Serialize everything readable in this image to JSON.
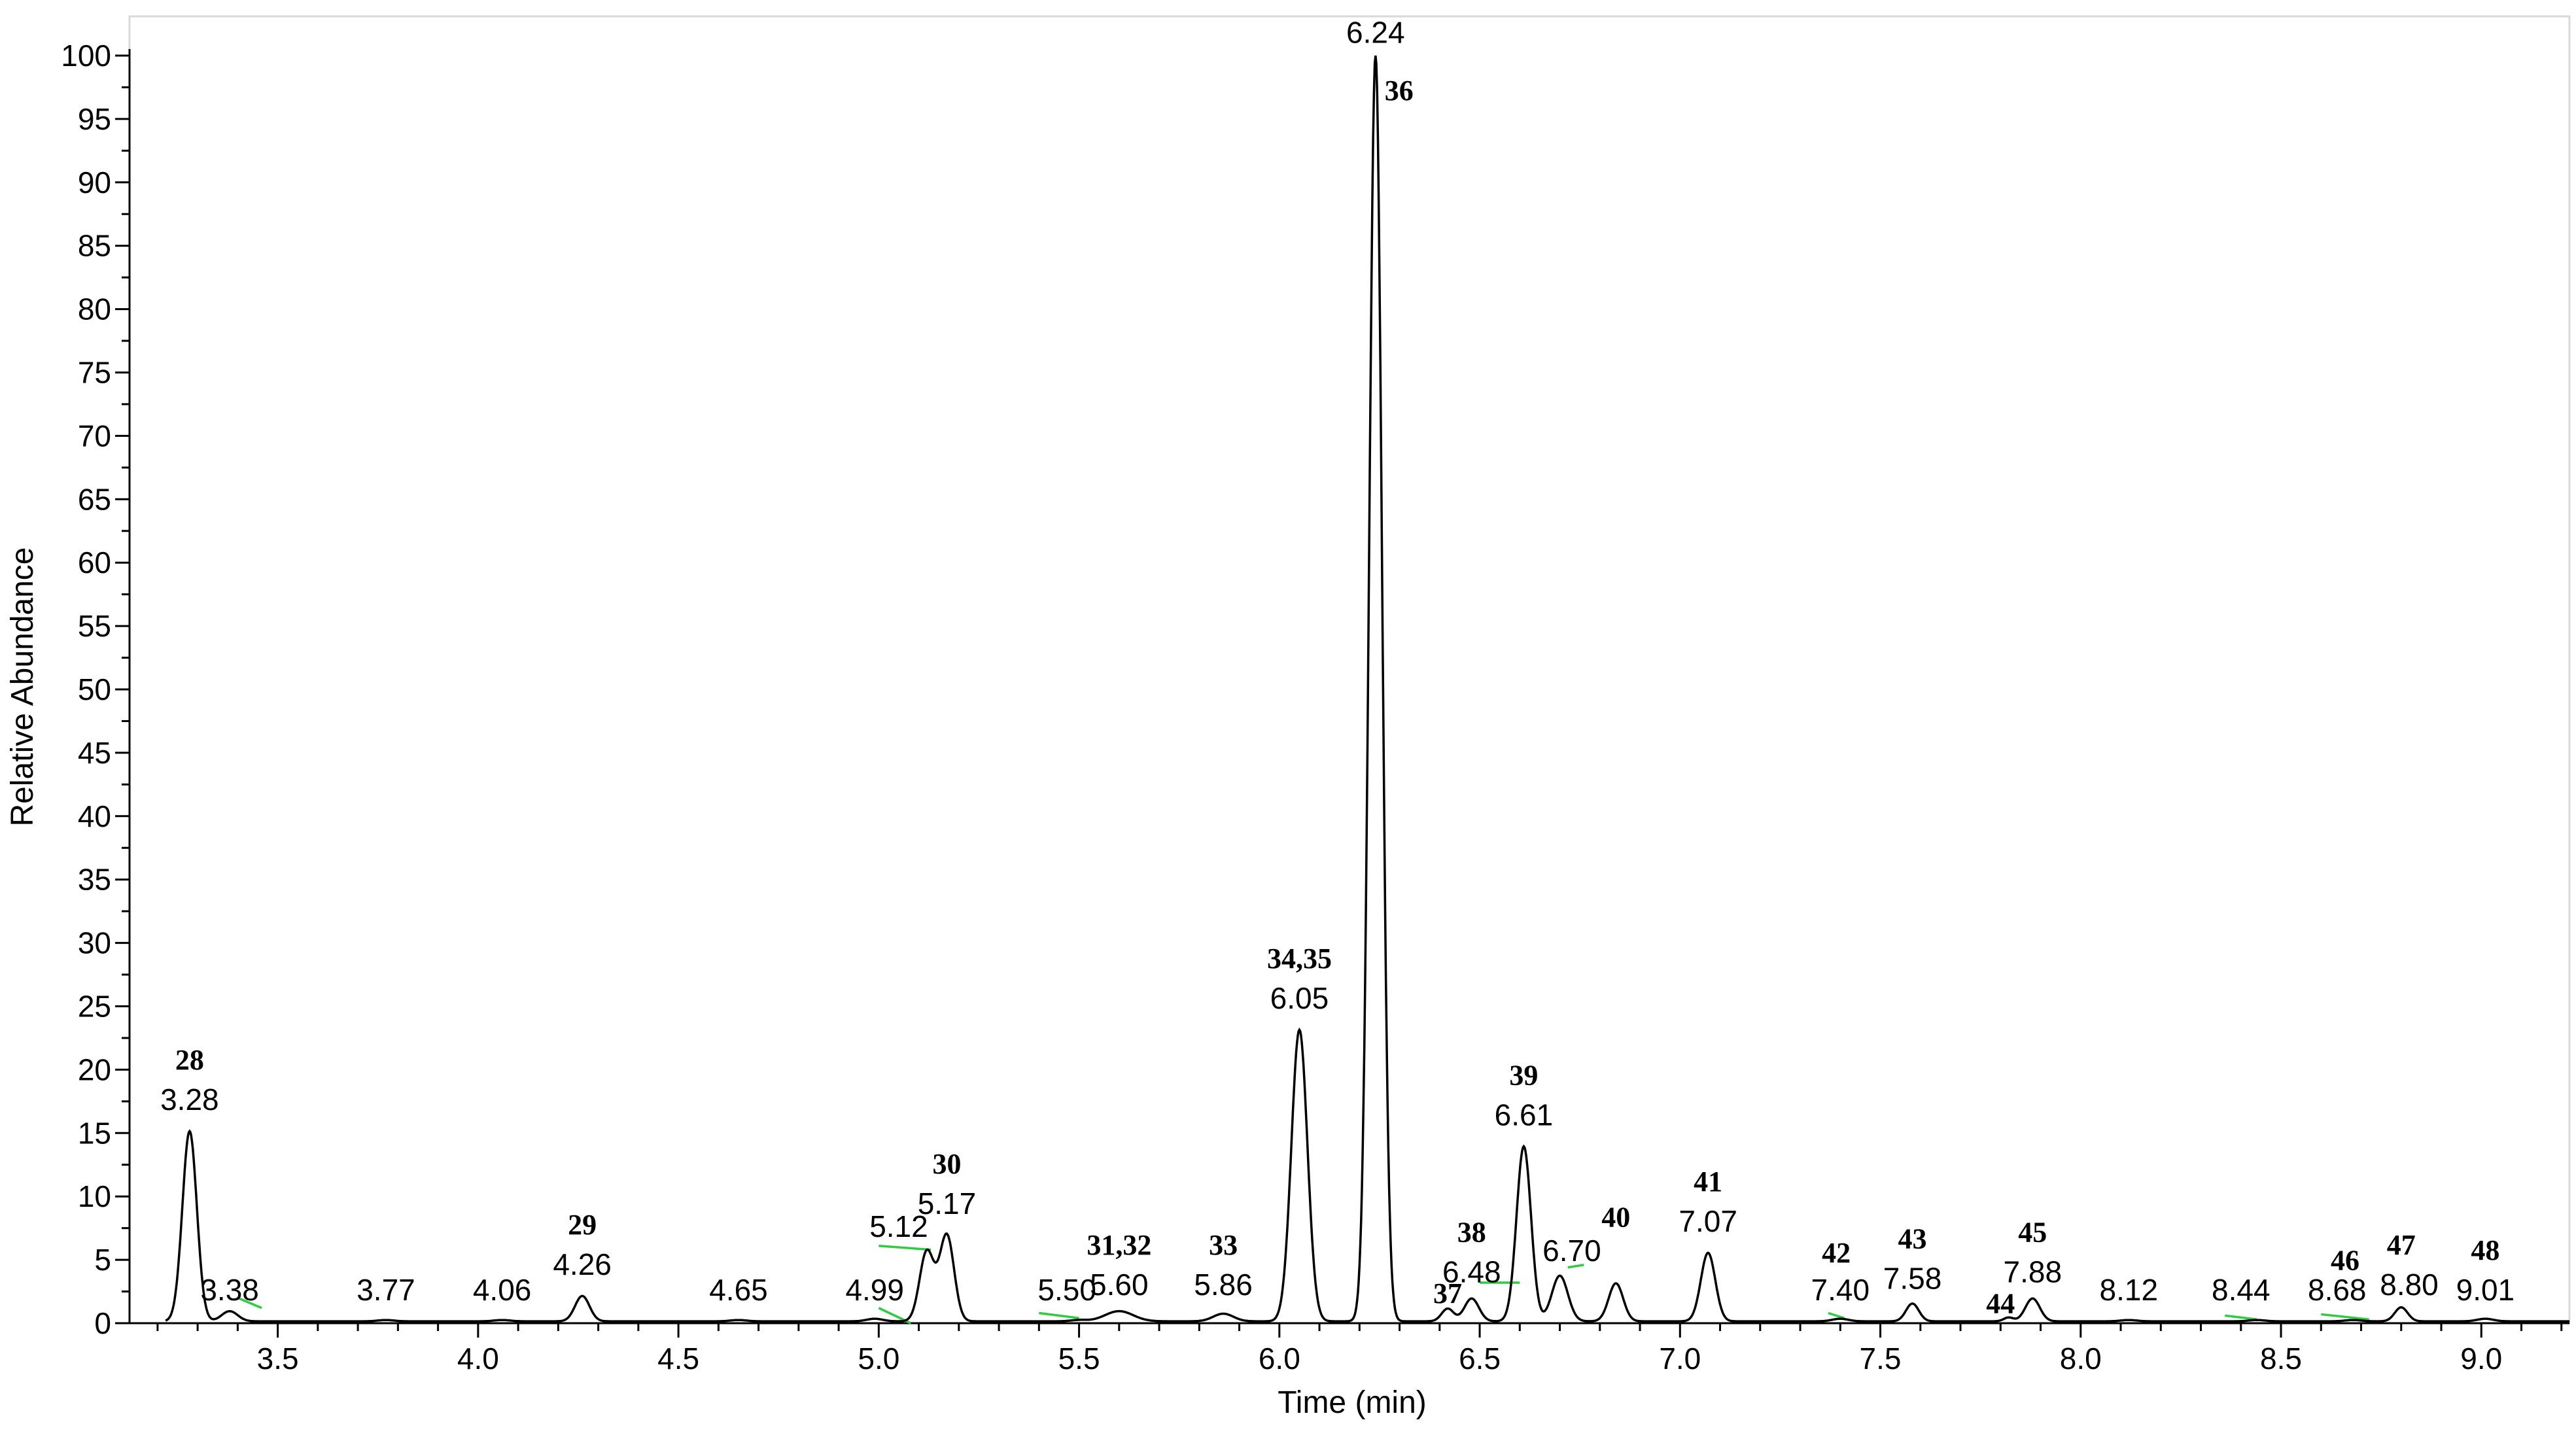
{
  "chart_data": {
    "type": "line",
    "title": "",
    "xlabel": "Time (min)",
    "ylabel": "Relative Abundance",
    "xlim": [
      3.13,
      9.22
    ],
    "ylim": [
      0,
      100
    ],
    "xticks": [
      "3.5",
      "4.0",
      "4.5",
      "5.0",
      "5.5",
      "6.0",
      "6.5",
      "7.0",
      "7.5",
      "8.0",
      "8.5",
      "9.0"
    ],
    "yticks": [
      "0",
      "5",
      "10",
      "15",
      "20",
      "25",
      "30",
      "35",
      "40",
      "45",
      "50",
      "55",
      "60",
      "65",
      "70",
      "75",
      "80",
      "85",
      "90",
      "95",
      "100"
    ],
    "peaks": [
      {
        "rt": 3.28,
        "height": 15,
        "width": 0.018,
        "rt_label": "3.28",
        "id_label": "28"
      },
      {
        "rt": 3.38,
        "height": 0.8,
        "width": 0.02,
        "rt_label": "3.38",
        "id_label": ""
      },
      {
        "rt": 3.77,
        "height": 0.1,
        "width": 0.02,
        "rt_label": "3.77",
        "id_label": ""
      },
      {
        "rt": 4.06,
        "height": 0.1,
        "width": 0.02,
        "rt_label": "4.06",
        "id_label": ""
      },
      {
        "rt": 4.26,
        "height": 2.0,
        "width": 0.018,
        "rt_label": "4.26",
        "id_label": "29"
      },
      {
        "rt": 4.65,
        "height": 0.1,
        "width": 0.02,
        "rt_label": "4.65",
        "id_label": ""
      },
      {
        "rt": 4.99,
        "height": 0.2,
        "width": 0.02,
        "rt_label": "4.99",
        "id_label": ""
      },
      {
        "rt": 5.12,
        "height": 5.5,
        "width": 0.018,
        "rt_label": "5.12",
        "id_label": ""
      },
      {
        "rt": 5.17,
        "height": 6.8,
        "width": 0.018,
        "rt_label": "5.17",
        "id_label": "30"
      },
      {
        "rt": 5.5,
        "height": 0.1,
        "width": 0.02,
        "rt_label": "5.50",
        "id_label": ""
      },
      {
        "rt": 5.6,
        "height": 0.8,
        "width": 0.035,
        "rt_label": "5.60",
        "id_label": "31,32"
      },
      {
        "rt": 5.86,
        "height": 0.6,
        "width": 0.025,
        "rt_label": "5.86",
        "id_label": "33"
      },
      {
        "rt": 6.05,
        "height": 23,
        "width": 0.02,
        "rt_label": "6.05",
        "id_label": "34,35"
      },
      {
        "rt": 6.24,
        "height": 100,
        "width": 0.016,
        "rt_label": "6.24",
        "id_label": "36"
      },
      {
        "rt": 6.42,
        "height": 1.0,
        "width": 0.015,
        "rt_label": "",
        "id_label": "37"
      },
      {
        "rt": 6.48,
        "height": 1.8,
        "width": 0.018,
        "rt_label": "6.48",
        "id_label": "38"
      },
      {
        "rt": 6.61,
        "height": 13.8,
        "width": 0.018,
        "rt_label": "6.61",
        "id_label": "39"
      },
      {
        "rt": 6.7,
        "height": 3.6,
        "width": 0.02,
        "rt_label": "6.70",
        "id_label": ""
      },
      {
        "rt": 6.84,
        "height": 3.0,
        "width": 0.018,
        "rt_label": "",
        "id_label": "40"
      },
      {
        "rt": 7.07,
        "height": 5.4,
        "width": 0.018,
        "rt_label": "7.07",
        "id_label": "41"
      },
      {
        "rt": 7.4,
        "height": 0.2,
        "width": 0.02,
        "rt_label": "7.40",
        "id_label": "42"
      },
      {
        "rt": 7.58,
        "height": 1.4,
        "width": 0.016,
        "rt_label": "7.58",
        "id_label": "43"
      },
      {
        "rt": 7.82,
        "height": 0.3,
        "width": 0.012,
        "rt_label": "",
        "id_label": "44"
      },
      {
        "rt": 7.88,
        "height": 1.8,
        "width": 0.018,
        "rt_label": "7.88",
        "id_label": "45"
      },
      {
        "rt": 8.12,
        "height": 0.1,
        "width": 0.02,
        "rt_label": "8.12",
        "id_label": ""
      },
      {
        "rt": 8.44,
        "height": 0.1,
        "width": 0.02,
        "rt_label": "8.44",
        "id_label": ""
      },
      {
        "rt": 8.68,
        "height": 0.1,
        "width": 0.02,
        "rt_label": "8.68",
        "id_label": "46"
      },
      {
        "rt": 8.8,
        "height": 1.1,
        "width": 0.016,
        "rt_label": "8.80",
        "id_label": "47"
      },
      {
        "rt": 9.01,
        "height": 0.2,
        "width": 0.02,
        "rt_label": "9.01",
        "id_label": "48"
      }
    ],
    "colors": {
      "trace": "#000000",
      "baseline_marker": "#2ecc40"
    }
  }
}
